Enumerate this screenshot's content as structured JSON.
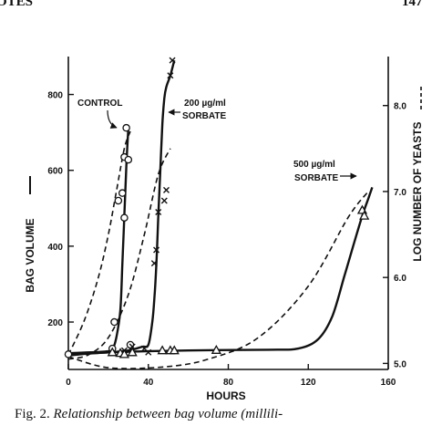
{
  "header": {
    "running_head": "OTES",
    "page_number": "147"
  },
  "caption": {
    "label": "Fig. 2.",
    "text": "Relationship between bag volume (millili-"
  },
  "chart_data": {
    "type": "line",
    "title": "",
    "xlabel": "HOURS",
    "ylabel_left": "BAG VOLUME",
    "ylabel_right": "LOG NUMBER OF YEASTS",
    "xlim": [
      0,
      160
    ],
    "ylim_left": [
      75,
      900
    ],
    "ylim_right": [
      4.93,
      8.57
    ],
    "x_ticks": [
      0,
      40,
      80,
      120,
      160
    ],
    "y_ticks_left": [
      200,
      400,
      600,
      800
    ],
    "y_ticks_right": [
      5.0,
      6.0,
      7.0,
      8.0
    ],
    "series": [
      {
        "name": "CONTROL",
        "kind": "bag_volume",
        "axis": "left",
        "marker": "circle",
        "points": [
          [
            0,
            115
          ],
          [
            22,
            130
          ],
          [
            23,
            200
          ],
          [
            25,
            520
          ],
          [
            27,
            540
          ],
          [
            28,
            475
          ],
          [
            28,
            635
          ],
          [
            29,
            712
          ],
          [
            30,
            628
          ],
          [
            31,
            140
          ]
        ],
        "curve": [
          [
            0,
            118
          ],
          [
            18,
            122
          ],
          [
            22,
            130
          ],
          [
            24,
            160
          ],
          [
            26,
            230
          ],
          [
            27,
            350
          ],
          [
            28,
            480
          ],
          [
            29,
            610
          ],
          [
            30,
            710
          ]
        ]
      },
      {
        "name": "200 µg/ml SORBATE",
        "kind": "bag_volume",
        "axis": "left",
        "marker": "x",
        "points": [
          [
            28,
            125
          ],
          [
            32,
            135
          ],
          [
            38,
            130
          ],
          [
            40,
            120
          ],
          [
            43,
            355
          ],
          [
            44,
            390
          ],
          [
            45,
            490
          ],
          [
            48,
            520
          ],
          [
            49,
            548
          ],
          [
            51,
            850
          ],
          [
            52,
            890
          ]
        ],
        "curve": [
          [
            0,
            115
          ],
          [
            20,
            120
          ],
          [
            30,
            125
          ],
          [
            37,
            135
          ],
          [
            40,
            140
          ],
          [
            42,
            200
          ],
          [
            43,
            260
          ],
          [
            44,
            350
          ],
          [
            45,
            480
          ],
          [
            46,
            600
          ],
          [
            47,
            720
          ],
          [
            48,
            790
          ],
          [
            49,
            820
          ],
          [
            51,
            850
          ],
          [
            53,
            890
          ]
        ]
      },
      {
        "name": "500 µg/ml SORBATE",
        "kind": "bag_volume",
        "axis": "left",
        "marker": "triangle",
        "points": [
          [
            22,
            120
          ],
          [
            26,
            118
          ],
          [
            28,
            115
          ],
          [
            32,
            120
          ],
          [
            47,
            125
          ],
          [
            51,
            125
          ],
          [
            53,
            125
          ],
          [
            74,
            126
          ],
          [
            147,
            495
          ],
          [
            148,
            480
          ]
        ],
        "curve": [
          [
            0,
            112
          ],
          [
            20,
            120
          ],
          [
            60,
            125
          ],
          [
            100,
            127
          ],
          [
            115,
            130
          ],
          [
            125,
            155
          ],
          [
            132,
            215
          ],
          [
            138,
            320
          ],
          [
            143,
            410
          ],
          [
            147,
            480
          ],
          [
            150,
            525
          ],
          [
            152,
            555
          ]
        ]
      },
      {
        "name": "CONTROL",
        "kind": "yeast_count",
        "axis": "right",
        "style": "dashed",
        "curve": [
          [
            0,
            5.1
          ],
          [
            8,
            5.5
          ],
          [
            15,
            6.0
          ],
          [
            20,
            6.5
          ],
          [
            24,
            7.0
          ],
          [
            28,
            7.5
          ],
          [
            31,
            7.7
          ]
        ]
      },
      {
        "name": "200 µg/ml SORBATE",
        "kind": "yeast_count",
        "axis": "right",
        "style": "dashed",
        "curve": [
          [
            0,
            5.05
          ],
          [
            10,
            5.1
          ],
          [
            20,
            5.3
          ],
          [
            30,
            5.8
          ],
          [
            38,
            6.5
          ],
          [
            45,
            7.2
          ],
          [
            51,
            7.5
          ]
        ]
      },
      {
        "name": "500 µg/ml SORBATE",
        "kind": "yeast_count",
        "axis": "right",
        "style": "dashed",
        "curve": [
          [
            0,
            5.08
          ],
          [
            20,
            4.95
          ],
          [
            48,
            4.96
          ],
          [
            70,
            5.05
          ],
          [
            95,
            5.3
          ],
          [
            120,
            5.9
          ],
          [
            140,
            6.7
          ],
          [
            150,
            7.0
          ]
        ]
      }
    ],
    "annotations": [
      {
        "text": "CONTROL",
        "position": "upper-left"
      },
      {
        "text": "200 µg/ml",
        "position": "top-center"
      },
      {
        "text": "SORBATE",
        "position": "top-center"
      },
      {
        "text": "500 µg/ml",
        "position": "upper-right"
      },
      {
        "text": "SORBATE",
        "position": "upper-right"
      }
    ],
    "grid": false,
    "legend": "none"
  }
}
